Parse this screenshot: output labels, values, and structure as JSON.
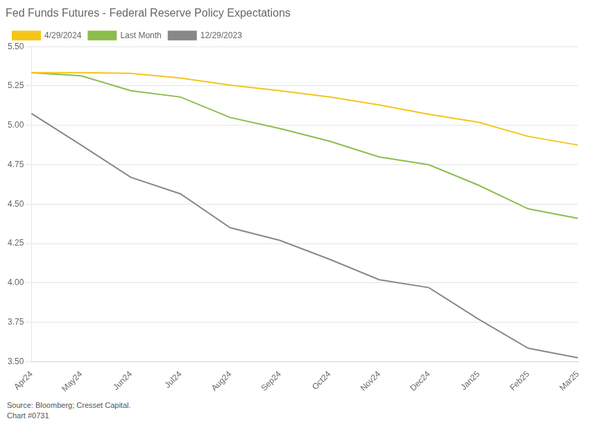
{
  "chart_data": {
    "type": "line",
    "title": "Fed Funds Futures - Federal Reserve Policy Expectations",
    "categories": [
      "Apr24",
      "May24",
      "Jun24",
      "Jul24",
      "Aug24",
      "Sep24",
      "Oct24",
      "Nov24",
      "Dec24",
      "Jan25",
      "Feb25",
      "Mar25"
    ],
    "series": [
      {
        "name": "4/29/2024",
        "color": "#F5C518",
        "values": [
          5.335,
          5.335,
          5.33,
          5.3,
          5.255,
          5.22,
          5.18,
          5.13,
          5.07,
          5.02,
          4.93,
          4.875
        ]
      },
      {
        "name": "Last Month",
        "color": "#8BBD4C",
        "values": [
          5.335,
          5.315,
          5.22,
          5.18,
          5.05,
          4.98,
          4.9,
          4.8,
          4.75,
          4.62,
          4.47,
          4.41
        ]
      },
      {
        "name": "12/29/2023",
        "color": "#888888",
        "values": [
          5.075,
          4.875,
          4.67,
          4.565,
          4.35,
          4.27,
          4.15,
          4.02,
          3.97,
          3.77,
          3.585,
          3.525
        ]
      }
    ],
    "ylim": [
      3.5,
      5.5
    ],
    "yticks": [
      {
        "value": 3.5,
        "label": "3.50"
      },
      {
        "value": 3.75,
        "label": "3.75"
      },
      {
        "value": 4.0,
        "label": "4.00"
      },
      {
        "value": 4.25,
        "label": "4.25"
      },
      {
        "value": 4.5,
        "label": "4.50"
      },
      {
        "value": 4.75,
        "label": "4.75"
      },
      {
        "value": 5.0,
        "label": "5.00"
      },
      {
        "value": 5.25,
        "label": "5.25"
      },
      {
        "value": 5.5,
        "label": "5.50"
      }
    ],
    "grid": true,
    "legend": "top",
    "annotations": [
      "Source: Bloomberg; Cresset Capital.",
      "Chart #0731"
    ]
  }
}
